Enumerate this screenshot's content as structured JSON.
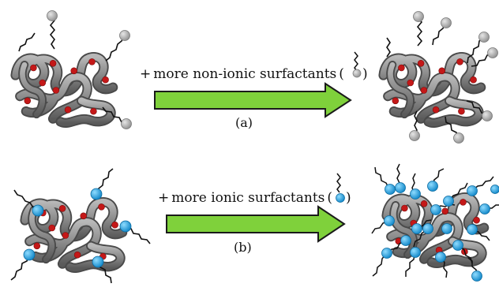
{
  "row_a": {
    "caption_prefix": "+",
    "caption_text": "more non-ionic surfactants",
    "paren_open": "(",
    "paren_close": ")",
    "label": "(a)",
    "surfactant_type": "non-ionic",
    "head_color": "#a9a9a9",
    "surfactants_before": 4,
    "surfactants_after": 8
  },
  "row_b": {
    "caption_prefix": "+",
    "caption_text": "more ionic surfactants",
    "paren_open": "(",
    "paren_close": ")",
    "label": "(b)",
    "surfactant_type": "ionic",
    "head_color": "#1fa3e0",
    "surfactants_before": 5,
    "surfactants_after": 20
  },
  "colors": {
    "arrow_fill": "#7fd13b",
    "arrow_stroke": "#1a1a1a",
    "ribbon": "#8a8a8a",
    "ribbon_dark": "#555555",
    "binding_site": "#c41818",
    "tail": "#111111"
  }
}
